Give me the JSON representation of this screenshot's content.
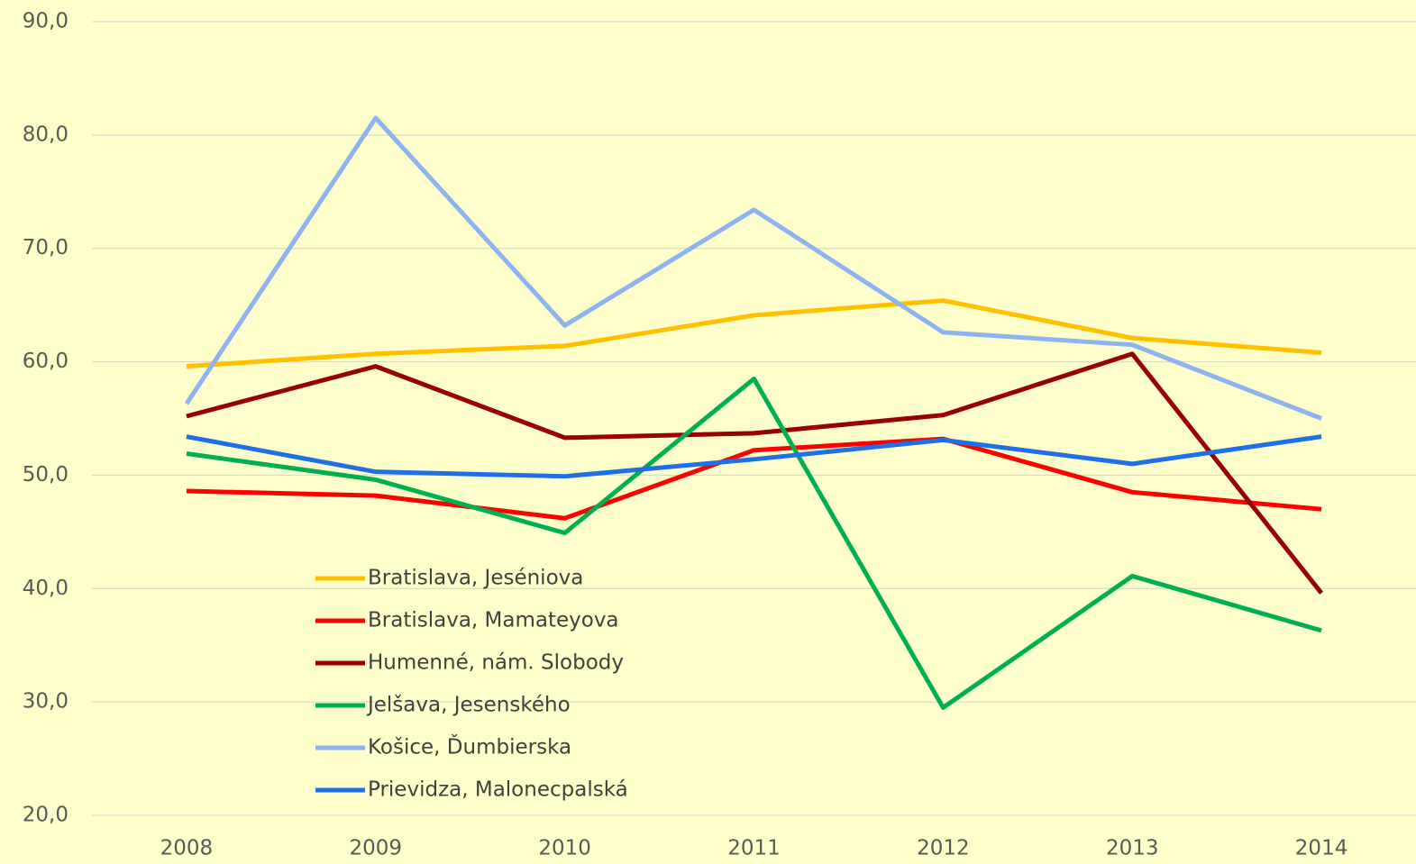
{
  "chart_data": {
    "type": "line",
    "categories": [
      "2008",
      "2009",
      "2010",
      "2011",
      "2012",
      "2013",
      "2014"
    ],
    "series": [
      {
        "name": "Bratislava, Jeséniova",
        "color": "#ffc000",
        "values": [
          59.6,
          60.7,
          61.4,
          64.1,
          65.4,
          62.1,
          60.8
        ]
      },
      {
        "name": "Bratislava, Mamateyova",
        "color": "#ff0000",
        "values": [
          48.6,
          48.2,
          46.2,
          52.2,
          53.2,
          48.5,
          47.0
        ]
      },
      {
        "name": "Humenné, nám. Slobody",
        "color": "#990000",
        "values": [
          55.2,
          59.6,
          53.3,
          53.7,
          55.3,
          60.7,
          39.6
        ]
      },
      {
        "name": "Jelšava, Jesenského",
        "color": "#00b050",
        "values": [
          51.9,
          49.6,
          44.9,
          58.5,
          29.5,
          41.1,
          36.3
        ]
      },
      {
        "name": "Košice, Ďumbierska",
        "color": "#8db4f0",
        "values": [
          56.3,
          81.5,
          63.2,
          73.4,
          62.6,
          61.5,
          55.0
        ]
      },
      {
        "name": "Prievidza, Malonecpalská",
        "color": "#1f6fe6",
        "values": [
          53.4,
          50.3,
          49.9,
          51.4,
          53.1,
          51.0,
          53.4
        ]
      }
    ],
    "ylim": [
      20,
      90
    ],
    "yticks": [
      {
        "value": 20,
        "label": "20,0"
      },
      {
        "value": 30,
        "label": "30,0"
      },
      {
        "value": 40,
        "label": "40,0"
      },
      {
        "value": 50,
        "label": "50,0"
      },
      {
        "value": 60,
        "label": "60,0"
      },
      {
        "value": 70,
        "label": "70,0"
      },
      {
        "value": 80,
        "label": "80,0"
      },
      {
        "value": 90,
        "label": "90,0"
      }
    ],
    "grid": true,
    "legend": "lower left"
  }
}
